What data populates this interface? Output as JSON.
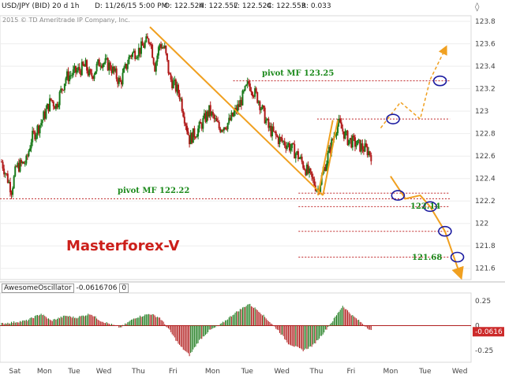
{
  "header": {
    "symbol": "USD/JPY (BID) 20 d 1h",
    "date": "D: 11/26/15 5:00 PM",
    "open": "O: 122.524",
    "high": "H: 122.557",
    "low": "L: 122.524",
    "close": "C: 122.553",
    "range": "R: 0.033",
    "copyright": "2015 © TD Ameritrade IP Company, Inc.",
    "corner_icon": "diamond-arrows-icon"
  },
  "brand": "Masterforex-V",
  "annotations": {
    "pivot_upper": "pivot MF 123.25",
    "pivot_lower": "pivot MF 122.22",
    "target_1": "122.14",
    "target_2": "121.68"
  },
  "oscillator": {
    "name": "AwesomeOscillator",
    "value": "-0.0616706",
    "zero": "0",
    "current_badge": "-0.0616",
    "y_ticks": [
      "0.25",
      "0",
      "-0.25"
    ]
  },
  "colors": {
    "up": "#1a7a1a",
    "down": "#b01818",
    "trend": "#f0a020",
    "pivot": "#c0282a",
    "circle": "#1a1aa0",
    "label_green": "#1c8a1c",
    "brand": "#cc1f1a"
  },
  "chart_data": {
    "type": "candlestick",
    "timeframe": "1h",
    "x_tick_labels": [
      "Sat",
      "Mon",
      "Tue",
      "Wed",
      "Thu",
      "Fri",
      "Mon",
      "Tue",
      "Wed",
      "Thu",
      "Fri",
      "Mon",
      "Tue",
      "Wed"
    ],
    "y_ticks": [
      123.8,
      123.6,
      123.4,
      123.2,
      123.0,
      122.8,
      122.6,
      122.4,
      122.2,
      122.0,
      121.8,
      121.6
    ],
    "ylim": [
      121.5,
      123.85
    ],
    "price_path": [
      [
        0,
        122.55
      ],
      [
        2,
        122.3
      ],
      [
        3,
        122.5
      ],
      [
        5,
        122.55
      ],
      [
        6,
        122.75
      ],
      [
        8,
        122.9
      ],
      [
        10,
        123.1
      ],
      [
        11,
        123.05
      ],
      [
        13,
        123.3
      ],
      [
        15,
        123.35
      ],
      [
        17,
        123.4
      ],
      [
        18,
        123.3
      ],
      [
        20,
        123.45
      ],
      [
        22,
        123.4
      ],
      [
        24,
        123.25
      ],
      [
        26,
        123.5
      ],
      [
        28,
        123.55
      ],
      [
        30,
        123.65
      ],
      [
        31,
        123.4
      ],
      [
        32,
        123.6
      ],
      [
        33,
        123.55
      ],
      [
        34,
        123.3
      ],
      [
        36,
        123.15
      ],
      [
        38,
        122.75
      ],
      [
        40,
        122.85
      ],
      [
        42,
        123.0
      ],
      [
        44,
        122.85
      ],
      [
        46,
        122.9
      ],
      [
        48,
        123.05
      ],
      [
        50,
        123.25
      ],
      [
        52,
        123.1
      ],
      [
        54,
        122.85
      ],
      [
        56,
        122.75
      ],
      [
        58,
        122.7
      ],
      [
        60,
        122.6
      ],
      [
        62,
        122.45
      ],
      [
        64,
        122.3
      ],
      [
        66,
        122.6
      ],
      [
        68,
        122.9
      ],
      [
        70,
        122.75
      ],
      [
        72,
        122.7
      ],
      [
        74,
        122.65
      ],
      [
        75,
        122.6
      ]
    ],
    "trend_lines": [
      {
        "x": [
          30,
          65
        ],
        "y": [
          123.75,
          122.25
        ]
      },
      {
        "x": [
          65,
          68
        ],
        "y": [
          122.25,
          122.92
        ]
      },
      {
        "x": [
          67,
          64
        ],
        "y": [
          122.92,
          122.25
        ]
      }
    ],
    "pivot_levels": [
      {
        "label": "pivot MF 123.25",
        "value": 123.27,
        "x": [
          50,
          98
        ]
      },
      {
        "label": "",
        "value": 122.93,
        "x": [
          68,
          98
        ]
      },
      {
        "label": "pivot MF 122.22",
        "value": 122.22,
        "x": [
          0,
          98
        ]
      },
      {
        "label": "",
        "value": 122.27,
        "x": [
          64,
          98
        ]
      },
      {
        "label": "122.14",
        "value": 122.15,
        "x": [
          64,
          98
        ]
      },
      {
        "label": "",
        "value": 121.93,
        "x": [
          64,
          98
        ]
      },
      {
        "label": "121.68",
        "value": 121.7,
        "x": [
          64,
          98
        ]
      }
    ],
    "projection_up": {
      "x": [
        77,
        81,
        85,
        87,
        90
      ],
      "y": [
        122.85,
        123.08,
        122.93,
        123.28,
        123.55
      ]
    },
    "projection_down": {
      "x": [
        79,
        82,
        85,
        87,
        90,
        93
      ],
      "y": [
        122.42,
        122.22,
        122.25,
        122.15,
        121.93,
        121.55
      ]
    },
    "circles": [
      {
        "x": 79.5,
        "y": 122.93
      },
      {
        "x": 89,
        "y": 123.27
      },
      {
        "x": 80.5,
        "y": 122.25
      },
      {
        "x": 87,
        "y": 122.15
      },
      {
        "x": 90,
        "y": 121.93
      },
      {
        "x": 92.5,
        "y": 121.7
      }
    ],
    "oscillator": {
      "ylim": [
        -0.37,
        0.33
      ],
      "path": [
        [
          0,
          0.02
        ],
        [
          5,
          0.05
        ],
        [
          8,
          0.12
        ],
        [
          10,
          0.05
        ],
        [
          13,
          0.1
        ],
        [
          15,
          0.08
        ],
        [
          18,
          0.12
        ],
        [
          20,
          0.05
        ],
        [
          24,
          -0.02
        ],
        [
          27,
          0.08
        ],
        [
          30,
          0.12
        ],
        [
          32,
          0.08
        ],
        [
          34,
          -0.05
        ],
        [
          36,
          -0.2
        ],
        [
          38,
          -0.3
        ],
        [
          40,
          -0.15
        ],
        [
          42,
          -0.05
        ],
        [
          44,
          0.0
        ],
        [
          47,
          0.12
        ],
        [
          50,
          0.22
        ],
        [
          52,
          0.15
        ],
        [
          54,
          0.05
        ],
        [
          56,
          -0.05
        ],
        [
          58,
          -0.18
        ],
        [
          61,
          -0.25
        ],
        [
          63,
          -0.2
        ],
        [
          65,
          -0.08
        ],
        [
          67,
          0.05
        ],
        [
          69,
          0.2
        ],
        [
          71,
          0.1
        ],
        [
          73,
          0.02
        ],
        [
          75,
          -0.06
        ]
      ]
    }
  }
}
